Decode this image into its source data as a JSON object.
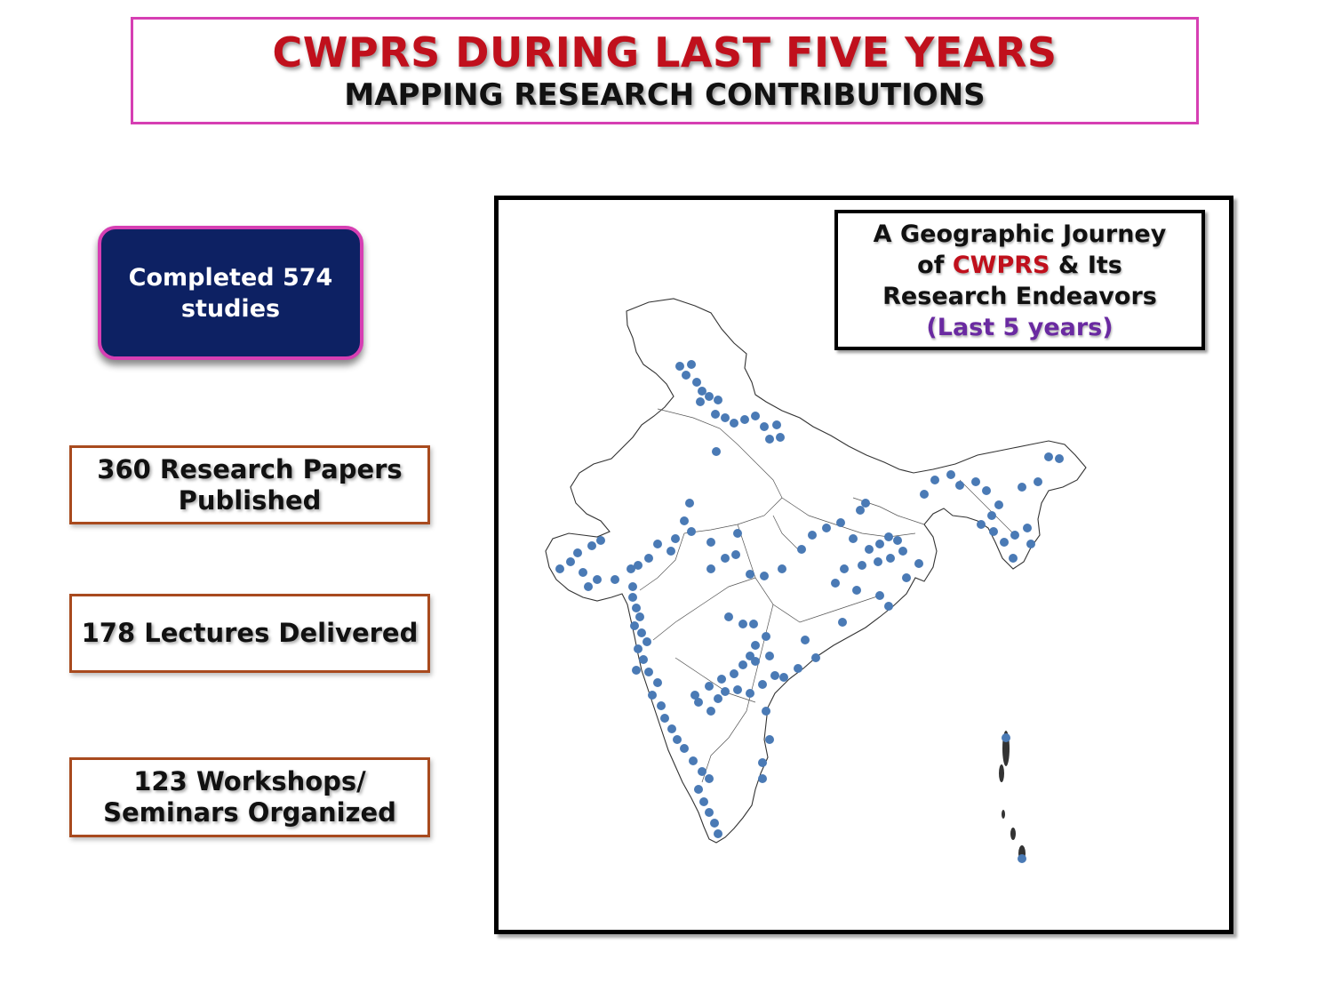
{
  "header": {
    "title": "CWPRS DURING LAST FIVE YEARS",
    "subtitle": "MAPPING RESEARCH CONTRIBUTIONS"
  },
  "stats": {
    "studies": "Completed 574 studies",
    "papers": "360 Research Papers Published",
    "lectures": "178 Lectures Delivered",
    "workshops": "123 Workshops/ Seminars Organized"
  },
  "legend": {
    "line1": "A Geographic Journey",
    "line2_prefix": "of ",
    "line2_highlight": "CWPRS",
    "line2_suffix": " & Its",
    "line3": "Research Endeavors",
    "line4": "(Last 5 years)"
  },
  "colors": {
    "title_red": "#c0101c",
    "accent_magenta": "#d63fb3",
    "studies_bg": "#0d2163",
    "stat_border": "#a84a1e",
    "marker_blue": "#4a7ab5",
    "legend_purple": "#6a2aa1"
  },
  "map": {
    "region": "India",
    "marker_color": "#4a7ab5"
  }
}
